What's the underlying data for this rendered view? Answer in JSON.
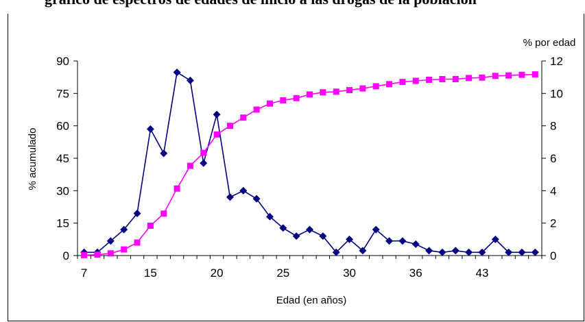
{
  "title": "gráfico de espectros de edades de inicio a las drogas de la población",
  "chart_data": {
    "type": "line",
    "xlabel": "Edad (en años)",
    "ylabel_left": "% acumulado",
    "ylabel_right": "% por edad",
    "ylim_left": [
      0,
      90
    ],
    "ylim_right": [
      0,
      12
    ],
    "yticks_left": [
      "0",
      "15",
      "30",
      "45",
      "60",
      "75",
      "90"
    ],
    "yticks_right": [
      "0",
      "2",
      "4",
      "6",
      "8",
      "10",
      "12"
    ],
    "xticks": [
      "7",
      "15",
      "20",
      "25",
      "30",
      "36",
      "43"
    ],
    "xticks_index": [
      0,
      5,
      10,
      15,
      20,
      25,
      30
    ],
    "grid": false,
    "legend": "none",
    "series": [
      {
        "axis": "right",
        "color": "#000080",
        "marker": "diamond",
        "values": [
          0.2,
          0.2,
          0.9,
          1.6,
          2.6,
          7.8,
          6.3,
          11.3,
          10.8,
          5.7,
          8.7,
          3.6,
          4.0,
          3.5,
          2.4,
          1.7,
          1.2,
          1.6,
          1.2,
          0.2,
          1.0,
          0.3,
          1.6,
          0.9,
          0.9,
          0.7,
          0.3,
          0.2,
          0.3,
          0.2,
          0.2,
          1.0,
          0.2,
          0.2,
          0.2
        ]
      },
      {
        "axis": "left",
        "color": "#ff00ff",
        "marker": "square",
        "values": [
          0.2,
          0.4,
          1.0,
          2.8,
          6.0,
          13.8,
          19.4,
          31.0,
          41.5,
          47.5,
          56.0,
          60.0,
          63.8,
          67.5,
          70.3,
          71.8,
          72.8,
          74.5,
          75.5,
          75.8,
          76.5,
          77.3,
          78.3,
          79.3,
          80.3,
          80.8,
          81.3,
          81.6,
          81.6,
          82.1,
          82.3,
          83.1,
          83.3,
          83.6,
          83.8
        ]
      }
    ]
  }
}
